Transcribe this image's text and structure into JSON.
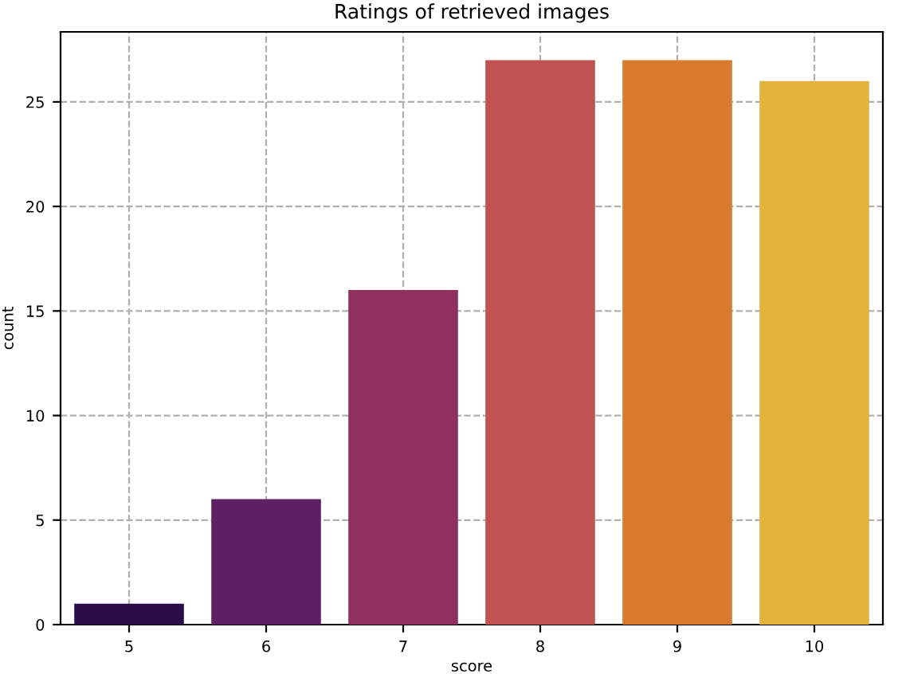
{
  "chart_data": {
    "type": "bar",
    "title": "Ratings of retrieved images",
    "xlabel": "score",
    "ylabel": "count",
    "categories": [
      "5",
      "6",
      "7",
      "8",
      "9",
      "10"
    ],
    "values": [
      1,
      6,
      16,
      27,
      27,
      26
    ],
    "colors": [
      "#2a0c48",
      "#5e1f63",
      "#8f2f5e",
      "#c1524f",
      "#d97a2f",
      "#e3b43c"
    ],
    "ylim": [
      0,
      28.35
    ],
    "yticks": [
      0,
      5,
      10,
      15,
      20,
      25
    ],
    "grid": true,
    "line_style": "dashed"
  }
}
